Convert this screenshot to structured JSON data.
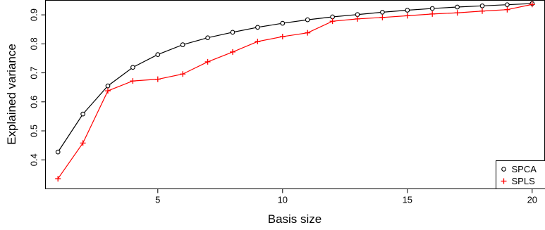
{
  "chart_data": {
    "type": "line",
    "title": "",
    "xlabel": "Basis size",
    "ylabel": "Explained variance",
    "xlim": [
      0.5,
      20.5
    ],
    "ylim": [
      0.3,
      0.95
    ],
    "xticks": [
      5,
      10,
      15,
      20
    ],
    "yticks": [
      0.4,
      0.5,
      0.6,
      0.7,
      0.8,
      0.9
    ],
    "grid": false,
    "legend_position": "bottom-right",
    "x": [
      1,
      2,
      3,
      4,
      5,
      6,
      7,
      8,
      9,
      10,
      11,
      12,
      13,
      14,
      15,
      16,
      17,
      18,
      19,
      20
    ],
    "series": [
      {
        "name": "SPCA",
        "marker": "circle",
        "color": "#000000",
        "values": [
          0.427,
          0.558,
          0.655,
          0.719,
          0.763,
          0.797,
          0.821,
          0.84,
          0.857,
          0.871,
          0.883,
          0.893,
          0.901,
          0.909,
          0.916,
          0.922,
          0.927,
          0.931,
          0.935,
          0.939
        ]
      },
      {
        "name": "SPLS",
        "marker": "plus",
        "color": "#ff0000",
        "values": [
          0.335,
          0.458,
          0.638,
          0.672,
          0.678,
          0.696,
          0.738,
          0.772,
          0.808,
          0.825,
          0.838,
          0.878,
          0.886,
          0.891,
          0.897,
          0.903,
          0.907,
          0.913,
          0.918,
          0.936
        ]
      }
    ]
  }
}
